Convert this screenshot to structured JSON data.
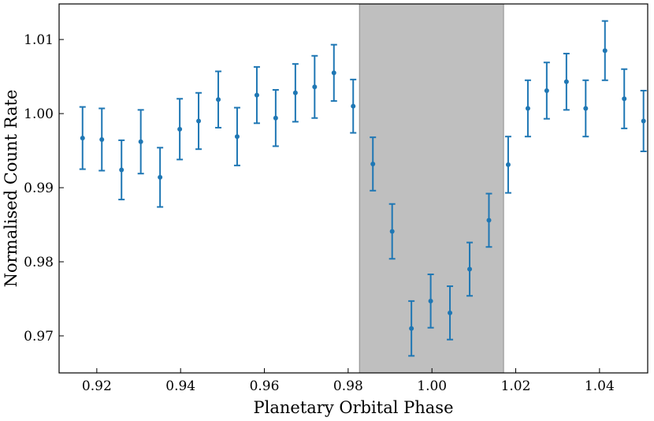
{
  "chart_data": {
    "type": "scatter",
    "xlabel": "Planetary Orbital Phase",
    "ylabel": "Normalised Count Rate",
    "xlim": [
      0.911,
      1.0515
    ],
    "ylim": [
      0.965,
      1.0148
    ],
    "x_ticks": [
      0.92,
      0.94,
      0.96,
      0.98,
      1.0,
      1.02,
      1.04
    ],
    "x_tick_labels": [
      "0.92",
      "0.94",
      "0.96",
      "0.98",
      "1.00",
      "1.02",
      "1.04"
    ],
    "y_ticks": [
      0.97,
      0.98,
      0.99,
      1.0,
      1.01
    ],
    "y_tick_labels": [
      "0.97",
      "0.98",
      "0.99",
      "1.00",
      "1.01"
    ],
    "grid": false,
    "shaded_region": {
      "x_start": 0.9827,
      "x_end": 1.0171,
      "color": "#bfbfbf"
    },
    "series": [
      {
        "color": "#1f77b4",
        "marker": "circle",
        "error_bars": true,
        "points": [
          {
            "x": 0.9166,
            "y": 0.9967,
            "err": 0.0042
          },
          {
            "x": 0.9212,
            "y": 0.9965,
            "err": 0.0042
          },
          {
            "x": 0.9259,
            "y": 0.9924,
            "err": 0.004
          },
          {
            "x": 0.9305,
            "y": 0.9962,
            "err": 0.0043
          },
          {
            "x": 0.9351,
            "y": 0.9914,
            "err": 0.004
          },
          {
            "x": 0.9398,
            "y": 0.9979,
            "err": 0.0041
          },
          {
            "x": 0.9443,
            "y": 0.999,
            "err": 0.0038
          },
          {
            "x": 0.949,
            "y": 1.0019,
            "err": 0.0038
          },
          {
            "x": 0.9535,
            "y": 0.9969,
            "err": 0.0039
          },
          {
            "x": 0.9582,
            "y": 1.0025,
            "err": 0.0038
          },
          {
            "x": 0.9627,
            "y": 0.9994,
            "err": 0.0038
          },
          {
            "x": 0.9674,
            "y": 1.0028,
            "err": 0.0039
          },
          {
            "x": 0.972,
            "y": 1.0036,
            "err": 0.0042
          },
          {
            "x": 0.9766,
            "y": 1.0055,
            "err": 0.0038
          },
          {
            "x": 0.9812,
            "y": 1.001,
            "err": 0.0036
          },
          {
            "x": 0.9859,
            "y": 0.9932,
            "err": 0.0036
          },
          {
            "x": 0.9905,
            "y": 0.9841,
            "err": 0.0037
          },
          {
            "x": 0.9951,
            "y": 0.971,
            "err": 0.0037
          },
          {
            "x": 0.9997,
            "y": 0.9747,
            "err": 0.0036
          },
          {
            "x": 1.0043,
            "y": 0.9731,
            "err": 0.0036
          },
          {
            "x": 1.009,
            "y": 0.979,
            "err": 0.0036
          },
          {
            "x": 1.0136,
            "y": 0.9856,
            "err": 0.0036
          },
          {
            "x": 1.0182,
            "y": 0.9931,
            "err": 0.0038
          },
          {
            "x": 1.0229,
            "y": 1.0007,
            "err": 0.0038
          },
          {
            "x": 1.0274,
            "y": 1.0031,
            "err": 0.0038
          },
          {
            "x": 1.0321,
            "y": 1.0043,
            "err": 0.0038
          },
          {
            "x": 1.0367,
            "y": 1.0007,
            "err": 0.0038
          },
          {
            "x": 1.0413,
            "y": 1.0085,
            "err": 0.004
          },
          {
            "x": 1.0459,
            "y": 1.002,
            "err": 0.004
          },
          {
            "x": 1.0505,
            "y": 0.999,
            "err": 0.0041
          }
        ]
      }
    ]
  }
}
